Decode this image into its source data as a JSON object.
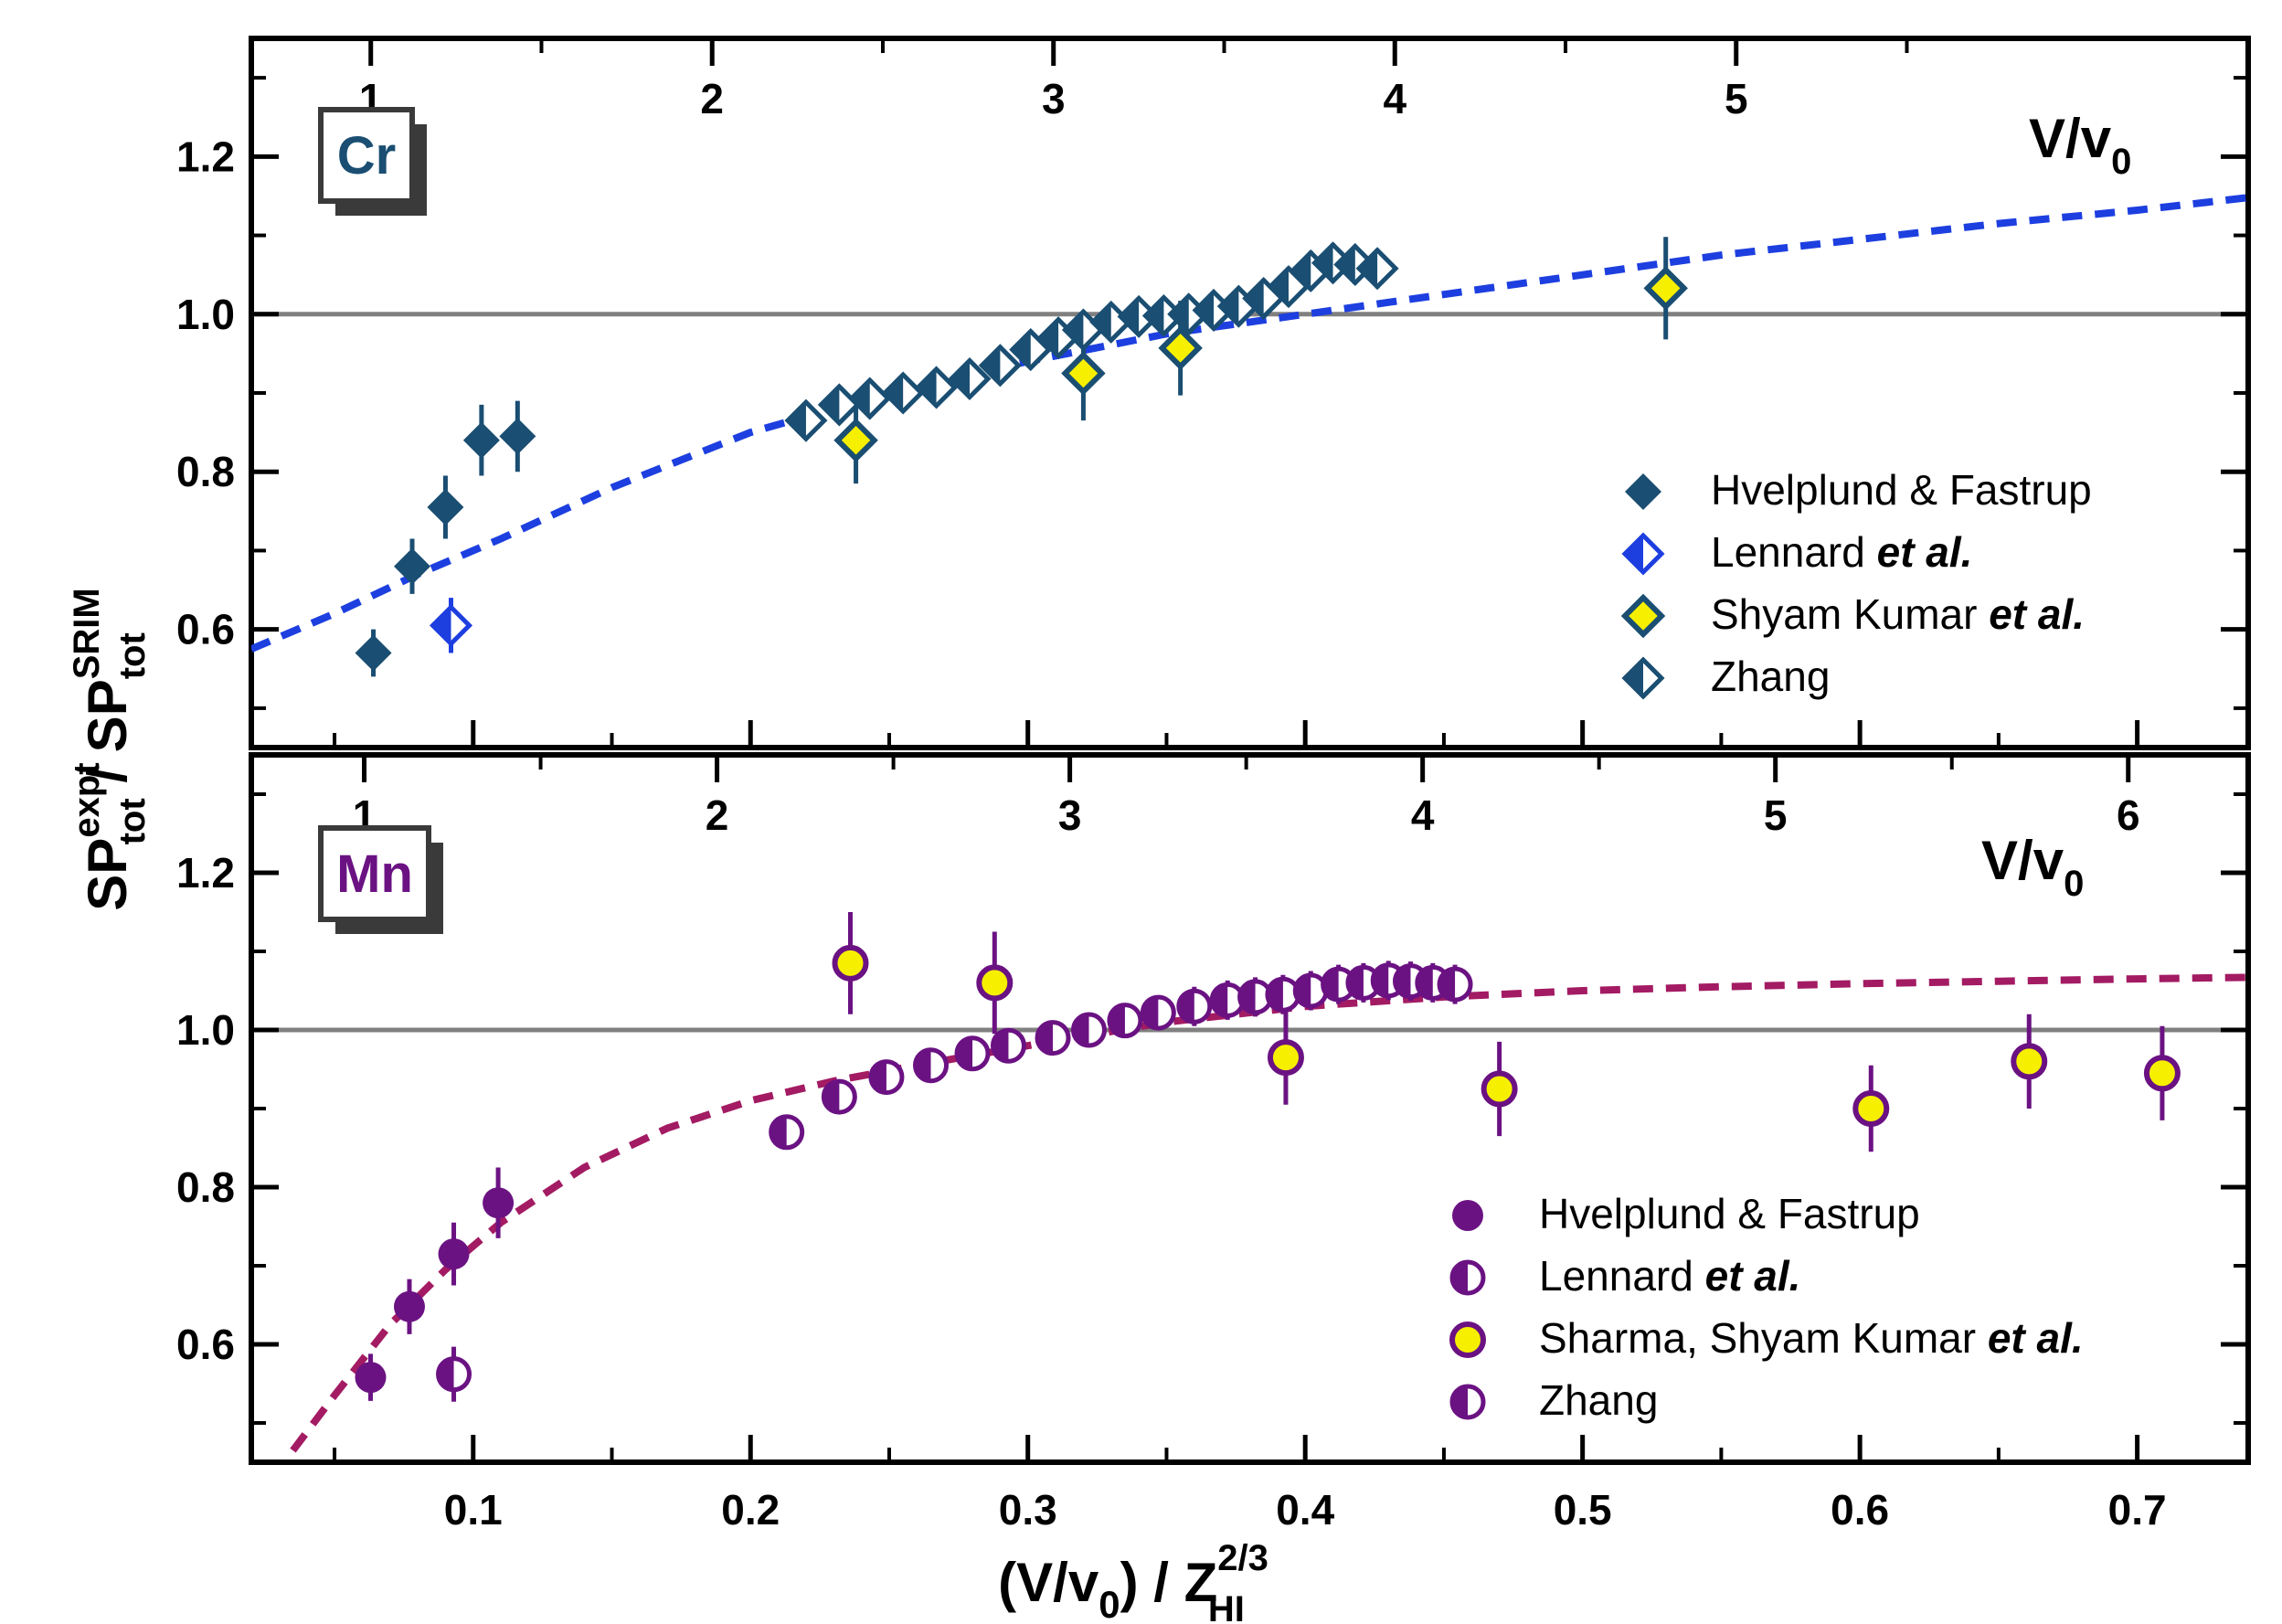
{
  "chart_data": [
    {
      "type": "scatter",
      "panel": "top",
      "element_label": "Cr",
      "element_color": "#1a4e72",
      "top_axis": {
        "label": "V/v",
        "label_sub": "0",
        "min": 0.65,
        "max": 6.5,
        "ticks": [
          "1",
          "2",
          "3",
          "4",
          "5"
        ],
        "tick_values": [
          1,
          2,
          3,
          4,
          5
        ]
      },
      "ylim": [
        0.45,
        1.35
      ],
      "yticks": [
        "0.6",
        "0.8",
        "1.0",
        "1.2"
      ],
      "ytick_values": [
        0.6,
        0.8,
        1.0,
        1.2
      ],
      "reference_line": 1.0,
      "fit_curve": {
        "color": "#1d3fe0",
        "x": [
          0.02,
          0.05,
          0.08,
          0.11,
          0.15,
          0.2,
          0.25,
          0.3,
          0.35,
          0.4,
          0.45,
          0.5,
          0.55,
          0.6,
          0.65,
          0.7,
          0.74
        ],
        "y": [
          0.575,
          0.62,
          0.67,
          0.715,
          0.78,
          0.85,
          0.9,
          0.94,
          0.975,
          1.0,
          1.025,
          1.05,
          1.075,
          1.095,
          1.115,
          1.132,
          1.148
        ]
      },
      "series": [
        {
          "name": "Hvelplund & Fastrup",
          "marker": "diamond-filled",
          "x": [
            0.064,
            0.078,
            0.09,
            0.103,
            0.116
          ],
          "y": [
            0.57,
            0.68,
            0.755,
            0.84,
            0.845
          ],
          "err": [
            0.03,
            0.035,
            0.04,
            0.045,
            0.045
          ]
        },
        {
          "name": "Lennard et al.",
          "marker": "diamond-half",
          "x": [
            0.092
          ],
          "y": [
            0.605
          ],
          "err": [
            0.035
          ]
        },
        {
          "name": "Shyam Kumar et al.",
          "marker": "diamond-yellow",
          "x": [
            0.238,
            0.32,
            0.355,
            0.53
          ],
          "y": [
            0.84,
            0.925,
            0.957,
            1.033
          ],
          "err": [
            0.055,
            0.06,
            0.06,
            0.065
          ]
        },
        {
          "name": "Zhang",
          "marker": "diamond-half-teal",
          "x": [
            0.22,
            0.232,
            0.243,
            0.255,
            0.267,
            0.279,
            0.29,
            0.301,
            0.311,
            0.32,
            0.33,
            0.34,
            0.349,
            0.358,
            0.367,
            0.376,
            0.385,
            0.394,
            0.402,
            0.41,
            0.418,
            0.426
          ],
          "y": [
            0.865,
            0.885,
            0.893,
            0.9,
            0.907,
            0.918,
            0.935,
            0.955,
            0.97,
            0.98,
            0.99,
            0.997,
            0.998,
            1.0,
            1.005,
            1.01,
            1.02,
            1.035,
            1.055,
            1.065,
            1.063,
            1.058
          ],
          "err": [
            0.015,
            0.015,
            0.015,
            0.015,
            0.015,
            0.02,
            0.02,
            0.02,
            0.02,
            0.02,
            0.02,
            0.02,
            0.02,
            0.02,
            0.02,
            0.02,
            0.025,
            0.025,
            0.025,
            0.025,
            0.025,
            0.025
          ]
        }
      ]
    },
    {
      "type": "scatter",
      "panel": "bottom",
      "element_label": "Mn",
      "element_color": "#6b1283",
      "top_axis": {
        "label": "V/v",
        "label_sub": "0",
        "min": 0.68,
        "max": 6.34,
        "ticks": [
          "1",
          "2",
          "3",
          "4",
          "5",
          "6"
        ],
        "tick_values": [
          1,
          2,
          3,
          4,
          5,
          6
        ]
      },
      "ylim": [
        0.45,
        1.35
      ],
      "yticks": [
        "0.6",
        "0.8",
        "1.0",
        "1.2"
      ],
      "ytick_values": [
        0.6,
        0.8,
        1.0,
        1.2
      ],
      "reference_line": 1.0,
      "fit_curve": {
        "color": "#a31b63",
        "x": [
          0.035,
          0.05,
          0.07,
          0.09,
          0.11,
          0.14,
          0.17,
          0.2,
          0.23,
          0.26,
          0.3,
          0.35,
          0.4,
          0.45,
          0.5,
          0.55,
          0.6,
          0.65,
          0.7,
          0.74
        ],
        "y": [
          0.465,
          0.535,
          0.625,
          0.695,
          0.755,
          0.825,
          0.875,
          0.91,
          0.935,
          0.955,
          0.98,
          1.01,
          1.03,
          1.042,
          1.05,
          1.055,
          1.059,
          1.062,
          1.065,
          1.067
        ]
      },
      "series": [
        {
          "name": "Hvelplund & Fastrup",
          "marker": "circle-filled",
          "x": [
            0.063,
            0.077,
            0.093,
            0.109
          ],
          "y": [
            0.558,
            0.648,
            0.715,
            0.78
          ],
          "err": [
            0.03,
            0.035,
            0.04,
            0.045
          ]
        },
        {
          "name": "Lennard et al.",
          "marker": "circle-half",
          "x": [
            0.093
          ],
          "y": [
            0.562
          ],
          "err": [
            0.035
          ]
        },
        {
          "name": "Sharma, Shyam Kumar et al.",
          "marker": "circle-yellow",
          "x": [
            0.236,
            0.288,
            0.393,
            0.47,
            0.604,
            0.661,
            0.709
          ],
          "y": [
            1.085,
            1.06,
            0.965,
            0.925,
            0.9,
            0.96,
            0.945
          ],
          "err": [
            0.065,
            0.065,
            0.06,
            0.06,
            0.055,
            0.06,
            0.06
          ]
        },
        {
          "name": "Zhang",
          "marker": "circle-half-v",
          "x": [
            0.213,
            0.232,
            0.249,
            0.265,
            0.28,
            0.293,
            0.309,
            0.322,
            0.335,
            0.347,
            0.36,
            0.372,
            0.382,
            0.392,
            0.402,
            0.412,
            0.421,
            0.43,
            0.438,
            0.446,
            0.454
          ],
          "y": [
            0.87,
            0.915,
            0.94,
            0.955,
            0.97,
            0.98,
            0.99,
            1.0,
            1.012,
            1.022,
            1.03,
            1.038,
            1.042,
            1.045,
            1.05,
            1.058,
            1.06,
            1.063,
            1.062,
            1.06,
            1.058
          ],
          "err": [
            0.02,
            0.02,
            0.02,
            0.02,
            0.02,
            0.02,
            0.02,
            0.02,
            0.02,
            0.02,
            0.025,
            0.025,
            0.025,
            0.025,
            0.025,
            0.025,
            0.025,
            0.025,
            0.025,
            0.025,
            0.025
          ]
        }
      ]
    }
  ],
  "shared_x": {
    "min": 0.02,
    "max": 0.74,
    "ticks": [
      "0.1",
      "0.2",
      "0.3",
      "0.4",
      "0.5",
      "0.6",
      "0.7"
    ],
    "tick_values": [
      0.1,
      0.2,
      0.3,
      0.4,
      0.5,
      0.6,
      0.7
    ],
    "xlabel_main": "(V/v",
    "xlabel_sub0": "0",
    "xlabel_mid": ") / Z",
    "xlabel_sup": "2/3",
    "xlabel_sub": "HI"
  },
  "y_title": {
    "num": "SP",
    "num_sup": "expt",
    "num_sub": "tot",
    "sep": " / ",
    "den": "SP",
    "den_sup": "SRIM",
    "den_sub": "tot"
  },
  "legends": {
    "top": [
      {
        "label": "Hvelplund & Fastrup",
        "italic": ""
      },
      {
        "label": "Lennard ",
        "italic": "et al."
      },
      {
        "label": "Shyam Kumar ",
        "italic": "et al."
      },
      {
        "label": "Zhang",
        "italic": ""
      }
    ],
    "bottom": [
      {
        "label": "Hvelplund & Fastrup",
        "italic": ""
      },
      {
        "label": "Lennard ",
        "italic": "et al."
      },
      {
        "label": "Sharma, Shyam Kumar ",
        "italic": "et al."
      },
      {
        "label": "Zhang",
        "italic": ""
      }
    ]
  },
  "colors": {
    "cr_marker": "#1a4e72",
    "cr_lennard": "#1d3fe0",
    "yellow": "#f6f000",
    "mn_marker": "#6b1283",
    "reference_line": "#808080"
  }
}
